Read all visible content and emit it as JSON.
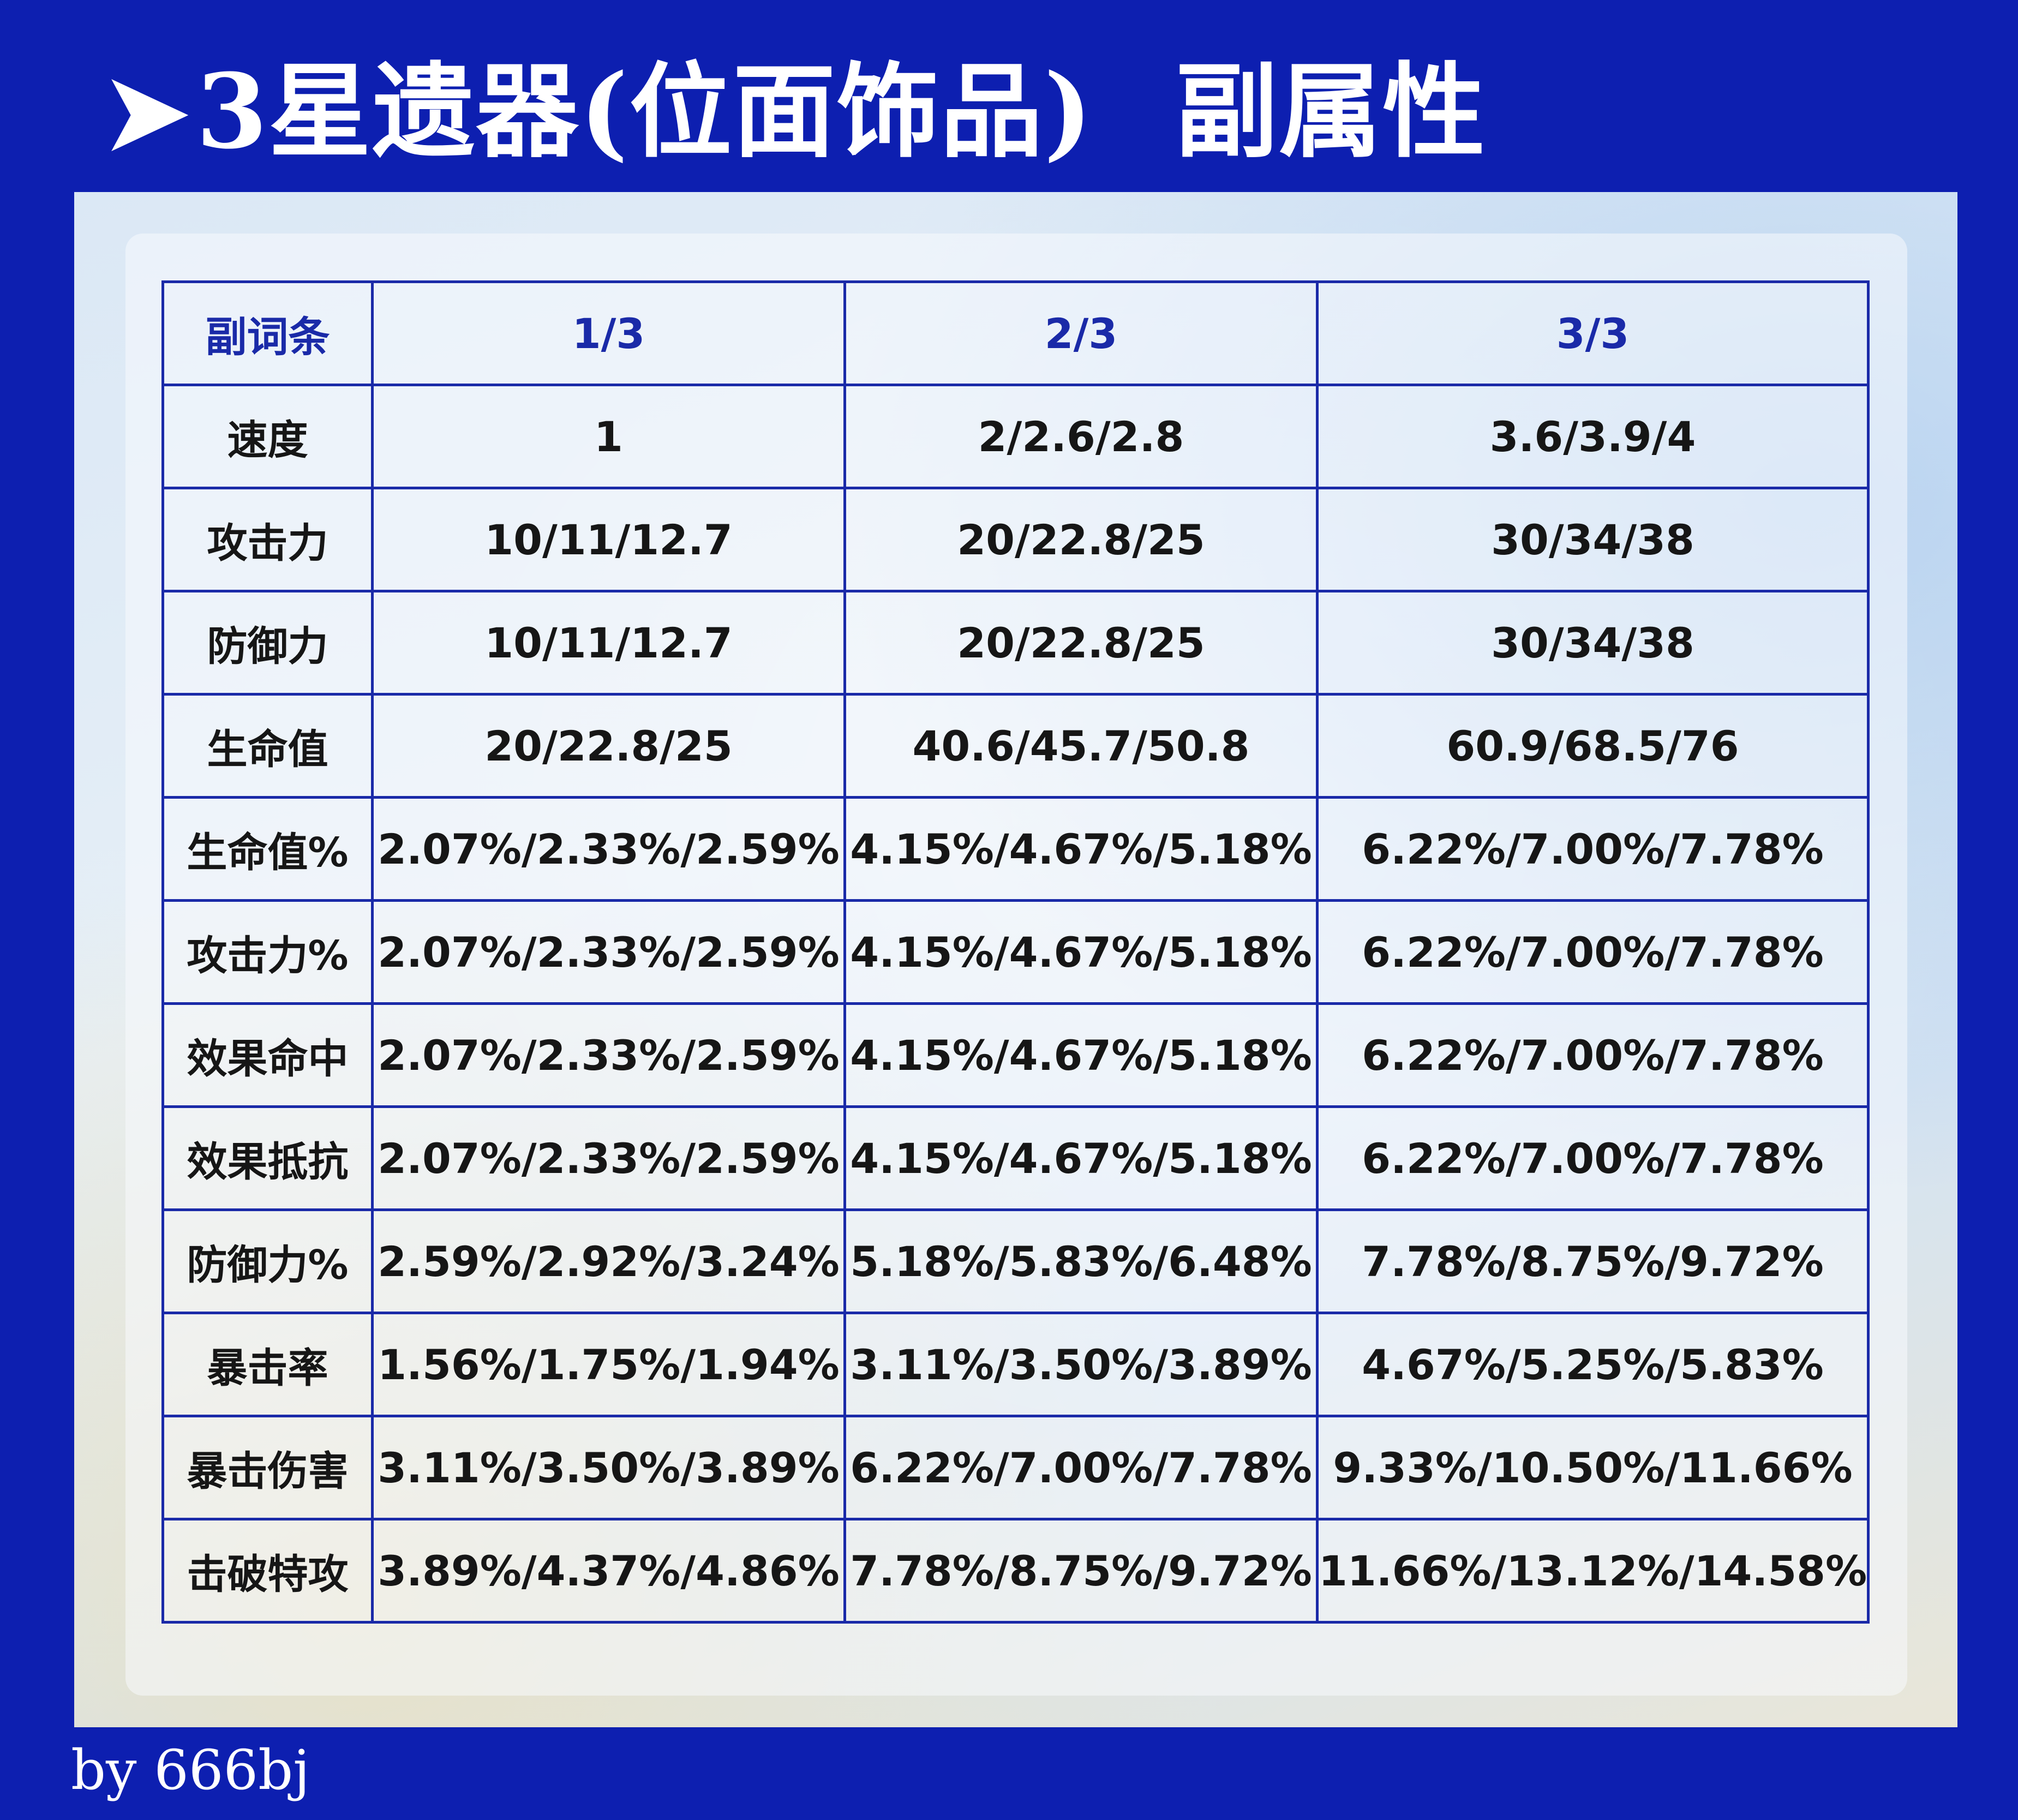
{
  "title": {
    "arrow_icon": "➤",
    "main": "3星遗器(位面饰品)",
    "sub": "副属性"
  },
  "table": {
    "headers": [
      "副词条",
      "1/3",
      "2/3",
      "3/3"
    ],
    "rows": [
      [
        "速度",
        "1",
        "2/2.6/2.8",
        "3.6/3.9/4"
      ],
      [
        "攻击力",
        "10/11/12.7",
        "20/22.8/25",
        "30/34/38"
      ],
      [
        "防御力",
        "10/11/12.7",
        "20/22.8/25",
        "30/34/38"
      ],
      [
        "生命值",
        "20/22.8/25",
        "40.6/45.7/50.8",
        "60.9/68.5/76"
      ],
      [
        "生命值%",
        "2.07%/2.33%/2.59%",
        "4.15%/4.67%/5.18%",
        "6.22%/7.00%/7.78%"
      ],
      [
        "攻击力%",
        "2.07%/2.33%/2.59%",
        "4.15%/4.67%/5.18%",
        "6.22%/7.00%/7.78%"
      ],
      [
        "效果命中",
        "2.07%/2.33%/2.59%",
        "4.15%/4.67%/5.18%",
        "6.22%/7.00%/7.78%"
      ],
      [
        "效果抵抗",
        "2.07%/2.33%/2.59%",
        "4.15%/4.67%/5.18%",
        "6.22%/7.00%/7.78%"
      ],
      [
        "防御力%",
        "2.59%/2.92%/3.24%",
        "5.18%/5.83%/6.48%",
        "7.78%/8.75%/9.72%"
      ],
      [
        "暴击率",
        "1.56%/1.75%/1.94%",
        "3.11%/3.50%/3.89%",
        "4.67%/5.25%/5.83%"
      ],
      [
        "暴击伤害",
        "3.11%/3.50%/3.89%",
        "6.22%/7.00%/7.78%",
        "9.33%/10.50%/11.66%"
      ],
      [
        "击破特攻",
        "3.89%/4.37%/4.86%",
        "7.78%/8.75%/9.72%",
        "11.66%/13.12%/14.58%"
      ]
    ]
  },
  "credit": "by 666bj",
  "colors": {
    "background": "#0d1fb0",
    "table_border": "#1a2aa8",
    "header_text": "#1a2aa8",
    "cell_text": "#161616",
    "title_text": "#ffffff"
  }
}
